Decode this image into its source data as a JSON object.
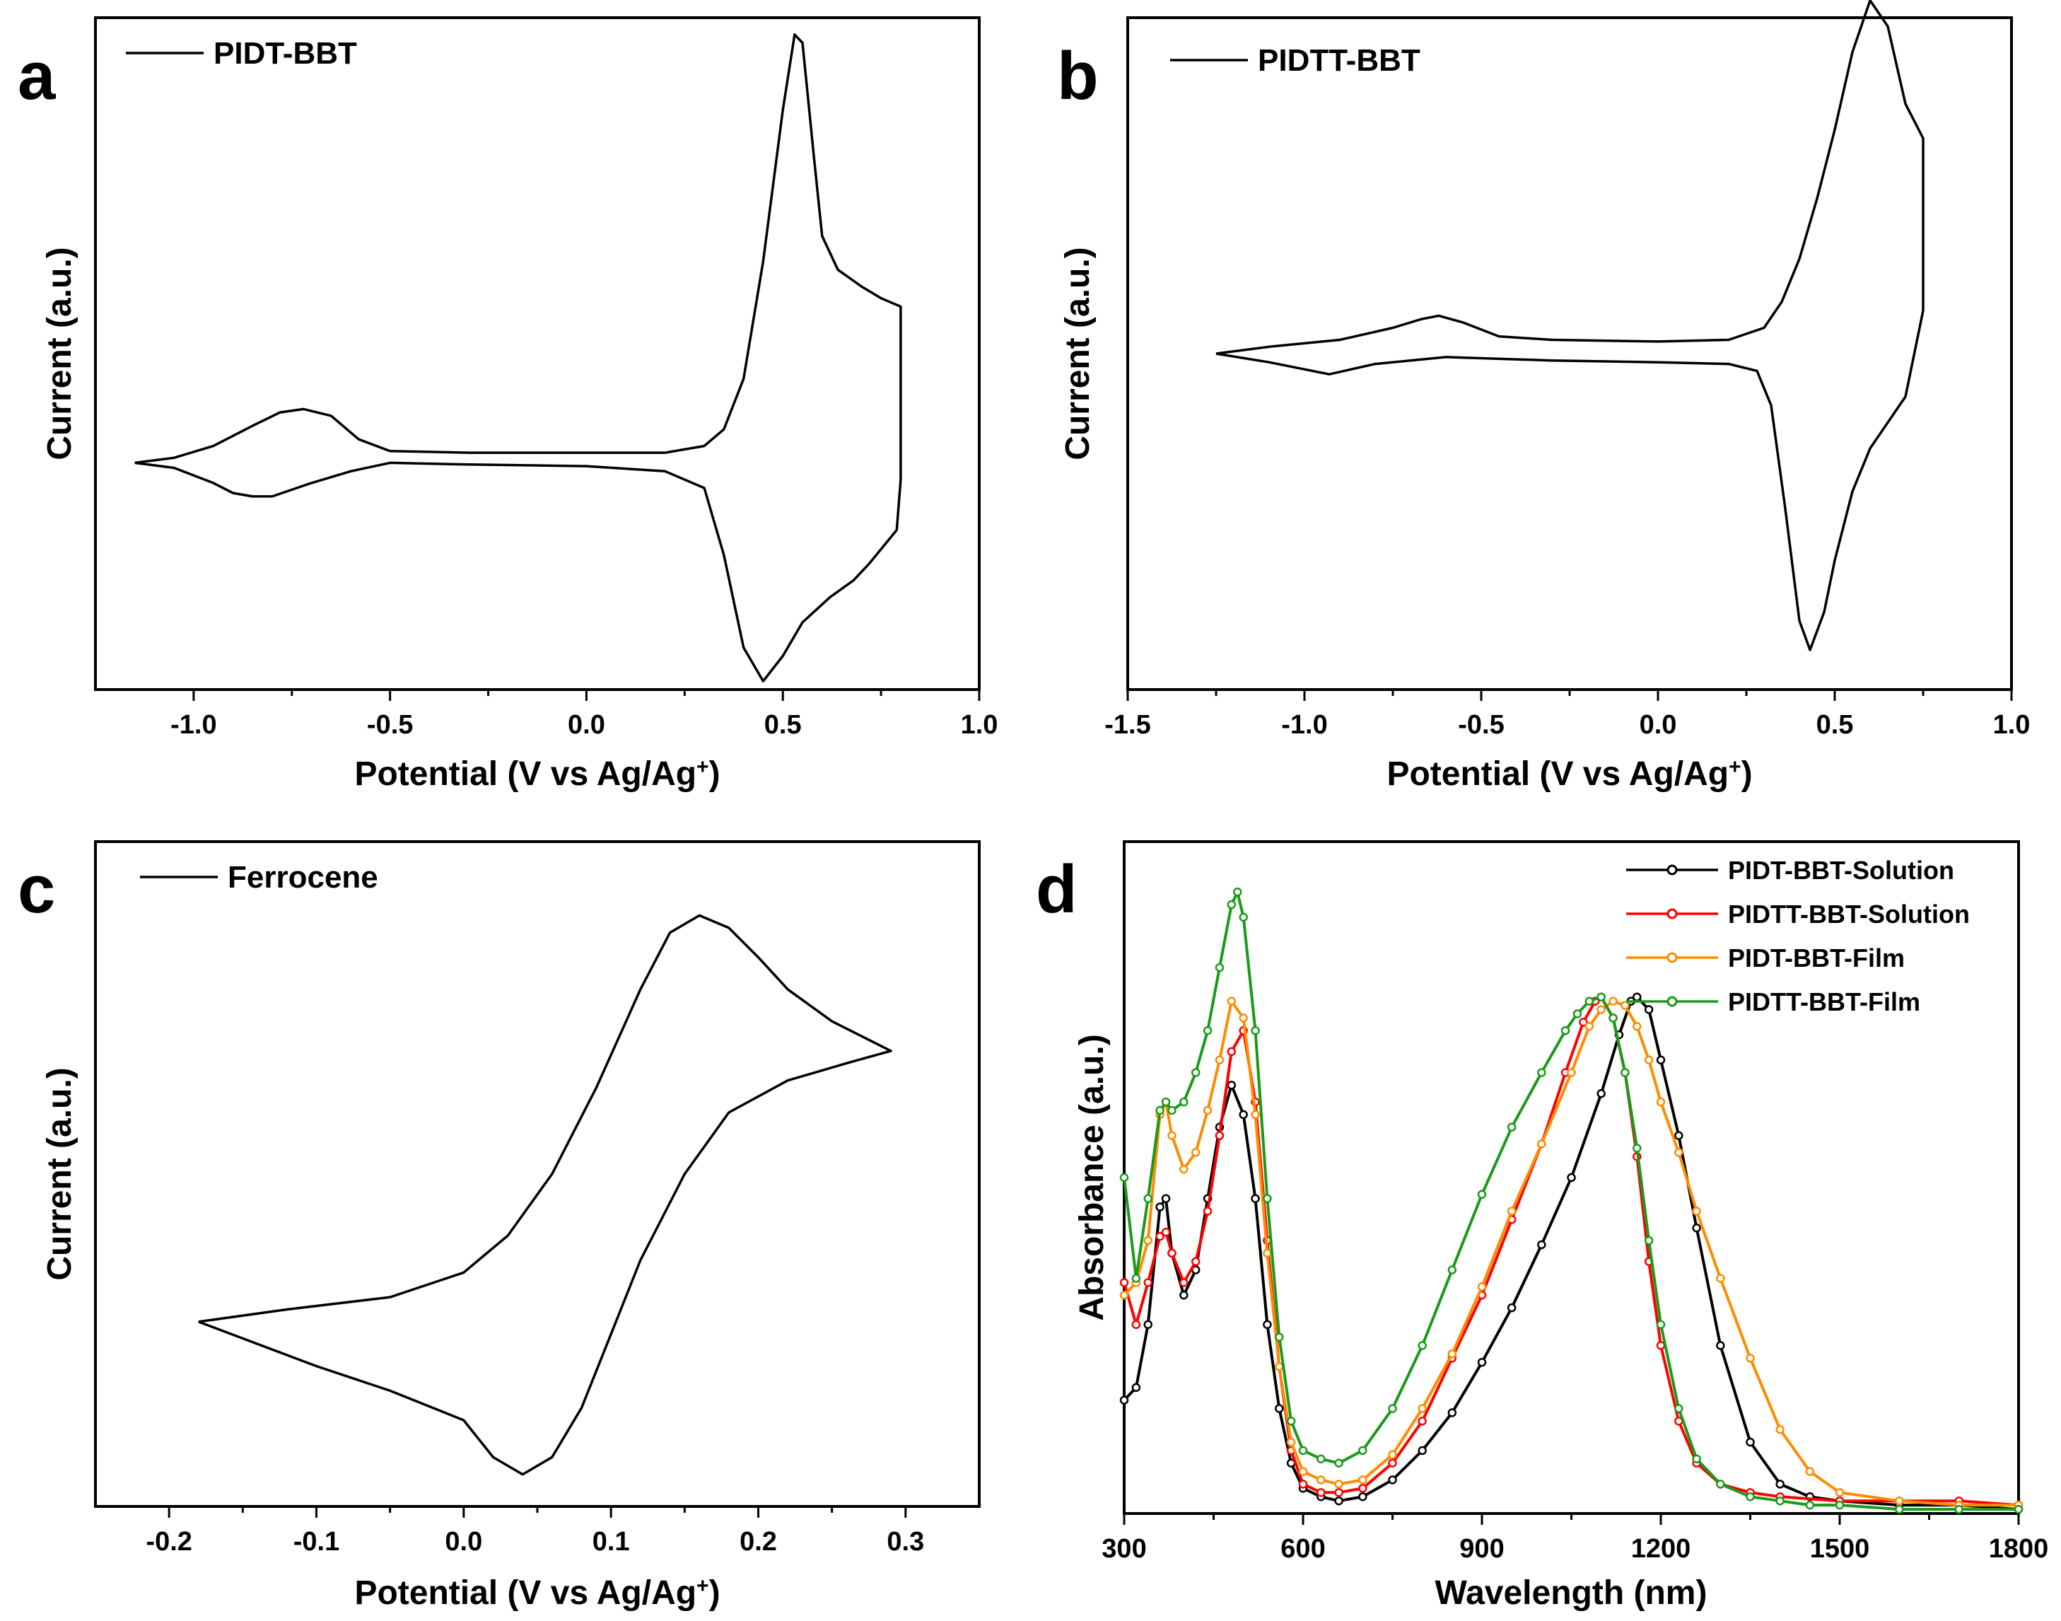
{
  "panels": [
    {
      "letter": "a",
      "chart_data": {
        "type": "line",
        "title": "",
        "xlabel": "Potential (V vs Ag/Ag",
        "xlabel_sup": "+",
        "xlabel_end": ")",
        "ylabel": "Current (a.u.)",
        "xlim": [
          -1.25,
          1.0
        ],
        "ylim": [
          -1.35,
          2.65
        ],
        "xticks": [
          -1.0,
          -0.5,
          0.0,
          0.5,
          1.0
        ],
        "xtick_labels": [
          "-1.0",
          "-0.5",
          "0.0",
          "0.5",
          "1.0"
        ],
        "yticks_shown": false,
        "legend": [
          "PIDT-BBT"
        ],
        "series": [
          {
            "name": "PIDT-BBT",
            "color": "#000000",
            "x": [
              -1.15,
              -1.05,
              -0.95,
              -0.85,
              -0.78,
              -0.72,
              -0.65,
              -0.58,
              -0.5,
              -0.3,
              0.0,
              0.2,
              0.3,
              0.35,
              0.4,
              0.45,
              0.5,
              0.53,
              0.55,
              0.58,
              0.6,
              0.64,
              0.7,
              0.75,
              0.8,
              0.8,
              0.79,
              0.72,
              0.68,
              0.62,
              0.55,
              0.5,
              0.45,
              0.4,
              0.35,
              0.3,
              0.2,
              0.0,
              -0.3,
              -0.5,
              -0.6,
              -0.7,
              -0.8,
              -0.85,
              -0.9,
              -0.95,
              -1.05,
              -1.15
            ],
            "y": [
              0.0,
              0.03,
              0.1,
              0.22,
              0.3,
              0.32,
              0.28,
              0.14,
              0.07,
              0.06,
              0.06,
              0.06,
              0.1,
              0.2,
              0.5,
              1.2,
              2.1,
              2.55,
              2.5,
              1.8,
              1.35,
              1.15,
              1.05,
              0.98,
              0.93,
              -0.1,
              -0.4,
              -0.6,
              -0.7,
              -0.8,
              -0.95,
              -1.15,
              -1.3,
              -1.1,
              -0.55,
              -0.15,
              -0.05,
              -0.02,
              -0.01,
              0.0,
              -0.05,
              -0.12,
              -0.2,
              -0.2,
              -0.18,
              -0.12,
              -0.03,
              0.0
            ]
          }
        ]
      }
    },
    {
      "letter": "b",
      "chart_data": {
        "type": "line",
        "title": "",
        "xlabel": "Potential (V vs Ag/Ag",
        "xlabel_sup": "+",
        "xlabel_end": ")",
        "ylabel": "Current (a.u.)",
        "xlim": [
          -1.5,
          1.0
        ],
        "ylim": [
          -1.95,
          1.95
        ],
        "xticks": [
          -1.5,
          -1.0,
          -0.5,
          0.0,
          0.5,
          1.0
        ],
        "xtick_labels": [
          "-1.5",
          "-1.0",
          "-0.5",
          "0.0",
          "0.5",
          "1.0"
        ],
        "yticks_shown": false,
        "legend": [
          "PIDTT-BBT"
        ],
        "series": [
          {
            "name": "PIDTT-BBT",
            "color": "#000000",
            "x": [
              -1.25,
              -1.1,
              -0.9,
              -0.75,
              -0.67,
              -0.62,
              -0.55,
              -0.45,
              -0.3,
              0.0,
              0.2,
              0.3,
              0.35,
              0.4,
              0.45,
              0.5,
              0.55,
              0.6,
              0.65,
              0.7,
              0.75,
              0.75,
              0.7,
              0.65,
              0.6,
              0.55,
              0.5,
              0.47,
              0.43,
              0.4,
              0.36,
              0.32,
              0.28,
              0.2,
              0.0,
              -0.3,
              -0.6,
              -0.8,
              -0.93,
              -1.1,
              -1.25
            ],
            "y": [
              0.0,
              0.04,
              0.08,
              0.15,
              0.2,
              0.22,
              0.18,
              0.1,
              0.08,
              0.07,
              0.08,
              0.15,
              0.3,
              0.55,
              0.9,
              1.3,
              1.75,
              2.05,
              1.9,
              1.45,
              1.25,
              0.25,
              -0.25,
              -0.4,
              -0.55,
              -0.8,
              -1.2,
              -1.5,
              -1.72,
              -1.55,
              -0.9,
              -0.3,
              -0.1,
              -0.06,
              -0.05,
              -0.04,
              -0.02,
              -0.06,
              -0.12,
              -0.05,
              0.0
            ]
          }
        ]
      }
    },
    {
      "letter": "c",
      "chart_data": {
        "type": "line",
        "title": "",
        "xlabel": "Potential (V vs Ag/Ag",
        "xlabel_sup": "+",
        "xlabel_end": ")",
        "ylabel": "Current (a.u.)",
        "xlim": [
          -0.25,
          0.35
        ],
        "ylim": [
          -1.35,
          1.35
        ],
        "xticks": [
          -0.2,
          -0.1,
          0.0,
          0.1,
          0.2,
          0.3
        ],
        "xtick_labels": [
          "-0.2",
          "-0.1",
          "0.0",
          "0.1",
          "0.2",
          "0.3"
        ],
        "yticks_shown": false,
        "legend": [
          "Ferrocene"
        ],
        "series": [
          {
            "name": "Ferrocene",
            "color": "#000000",
            "x": [
              -0.18,
              -0.12,
              -0.05,
              0.0,
              0.03,
              0.06,
              0.09,
              0.12,
              0.14,
              0.16,
              0.18,
              0.2,
              0.22,
              0.25,
              0.29,
              0.29,
              0.26,
              0.22,
              0.18,
              0.15,
              0.12,
              0.1,
              0.08,
              0.06,
              0.04,
              0.02,
              0.0,
              -0.05,
              -0.1,
              -0.18
            ],
            "y": [
              -0.6,
              -0.55,
              -0.5,
              -0.4,
              -0.25,
              0.0,
              0.35,
              0.75,
              0.98,
              1.05,
              1.0,
              0.88,
              0.75,
              0.62,
              0.5,
              0.5,
              0.45,
              0.38,
              0.25,
              0.0,
              -0.35,
              -0.65,
              -0.95,
              -1.15,
              -1.22,
              -1.15,
              -1.0,
              -0.88,
              -0.78,
              -0.6
            ]
          }
        ]
      }
    },
    {
      "letter": "d",
      "chart_data": {
        "type": "line",
        "title": "",
        "xlabel": "Wavelength (nm)",
        "ylabel": "Absorbance (a.u.)",
        "xlim": [
          300,
          1800
        ],
        "ylim": [
          0,
          1.6
        ],
        "xticks": [
          300,
          600,
          900,
          1200,
          1500,
          1800
        ],
        "xtick_labels": [
          "300",
          "600",
          "900",
          "1200",
          "1500",
          "1800"
        ],
        "yticks_shown": false,
        "legend": [
          "PIDT-BBT-Solution",
          "PIDTT-BBT-Solution",
          "PIDT-BBT-Film",
          "PIDTT-BBT-Film"
        ],
        "series": [
          {
            "name": "PIDT-BBT-Solution",
            "color": "#000000",
            "x": [
              300,
              320,
              340,
              360,
              370,
              380,
              400,
              420,
              440,
              460,
              480,
              500,
              520,
              540,
              560,
              580,
              600,
              630,
              660,
              700,
              750,
              800,
              850,
              900,
              950,
              1000,
              1050,
              1100,
              1130,
              1150,
              1160,
              1180,
              1200,
              1230,
              1260,
              1300,
              1350,
              1400,
              1450,
              1500,
              1600,
              1700,
              1800
            ],
            "y": [
              0.27,
              0.3,
              0.45,
              0.73,
              0.75,
              0.62,
              0.52,
              0.58,
              0.75,
              0.92,
              1.02,
              0.95,
              0.75,
              0.45,
              0.25,
              0.12,
              0.06,
              0.04,
              0.03,
              0.04,
              0.08,
              0.15,
              0.24,
              0.36,
              0.49,
              0.64,
              0.8,
              1.0,
              1.14,
              1.22,
              1.23,
              1.2,
              1.08,
              0.9,
              0.68,
              0.4,
              0.17,
              0.07,
              0.04,
              0.03,
              0.02,
              0.02,
              0.01
            ]
          },
          {
            "name": "PIDTT-BBT-Solution",
            "color": "#ff0000",
            "x": [
              300,
              320,
              340,
              360,
              370,
              380,
              400,
              420,
              440,
              460,
              480,
              500,
              520,
              540,
              560,
              580,
              600,
              630,
              660,
              700,
              750,
              800,
              850,
              900,
              950,
              1000,
              1040,
              1070,
              1090,
              1100,
              1120,
              1140,
              1160,
              1180,
              1200,
              1230,
              1260,
              1300,
              1350,
              1400,
              1500,
              1600,
              1700,
              1800
            ],
            "y": [
              0.55,
              0.45,
              0.55,
              0.66,
              0.67,
              0.62,
              0.55,
              0.6,
              0.72,
              0.9,
              1.1,
              1.15,
              0.98,
              0.65,
              0.35,
              0.15,
              0.07,
              0.05,
              0.05,
              0.06,
              0.12,
              0.22,
              0.37,
              0.52,
              0.7,
              0.88,
              1.05,
              1.17,
              1.22,
              1.23,
              1.18,
              1.05,
              0.85,
              0.6,
              0.4,
              0.22,
              0.12,
              0.07,
              0.05,
              0.04,
              0.03,
              0.03,
              0.03,
              0.02
            ]
          },
          {
            "name": "PIDT-BBT-Film",
            "color": "#ff8c00",
            "x": [
              300,
              320,
              340,
              360,
              370,
              380,
              400,
              420,
              440,
              460,
              480,
              500,
              520,
              540,
              560,
              580,
              600,
              630,
              660,
              700,
              750,
              800,
              850,
              900,
              950,
              1000,
              1050,
              1080,
              1100,
              1120,
              1140,
              1160,
              1180,
              1200,
              1230,
              1260,
              1300,
              1350,
              1400,
              1450,
              1500,
              1600,
              1700,
              1800
            ],
            "y": [
              0.52,
              0.55,
              0.65,
              0.95,
              0.98,
              0.9,
              0.82,
              0.86,
              0.96,
              1.08,
              1.22,
              1.18,
              0.95,
              0.62,
              0.35,
              0.17,
              0.1,
              0.08,
              0.07,
              0.08,
              0.14,
              0.25,
              0.38,
              0.54,
              0.72,
              0.88,
              1.05,
              1.16,
              1.2,
              1.22,
              1.21,
              1.16,
              1.08,
              0.98,
              0.86,
              0.72,
              0.56,
              0.37,
              0.2,
              0.1,
              0.05,
              0.03,
              0.02,
              0.02
            ]
          },
          {
            "name": "PIDTT-BBT-Film",
            "color": "#1a9a1a",
            "x": [
              300,
              320,
              340,
              360,
              370,
              380,
              400,
              420,
              440,
              460,
              480,
              490,
              500,
              520,
              540,
              560,
              580,
              600,
              630,
              660,
              700,
              750,
              800,
              850,
              900,
              950,
              1000,
              1040,
              1060,
              1080,
              1100,
              1120,
              1140,
              1160,
              1180,
              1200,
              1230,
              1260,
              1300,
              1350,
              1400,
              1450,
              1500,
              1600,
              1700,
              1800
            ],
            "y": [
              0.8,
              0.56,
              0.75,
              0.96,
              0.98,
              0.96,
              0.98,
              1.05,
              1.15,
              1.3,
              1.45,
              1.48,
              1.42,
              1.15,
              0.75,
              0.42,
              0.22,
              0.15,
              0.13,
              0.12,
              0.15,
              0.25,
              0.4,
              0.58,
              0.76,
              0.92,
              1.05,
              1.15,
              1.19,
              1.22,
              1.23,
              1.18,
              1.05,
              0.87,
              0.65,
              0.45,
              0.25,
              0.13,
              0.07,
              0.04,
              0.03,
              0.02,
              0.02,
              0.01,
              0.01,
              0.01
            ]
          }
        ]
      }
    }
  ]
}
